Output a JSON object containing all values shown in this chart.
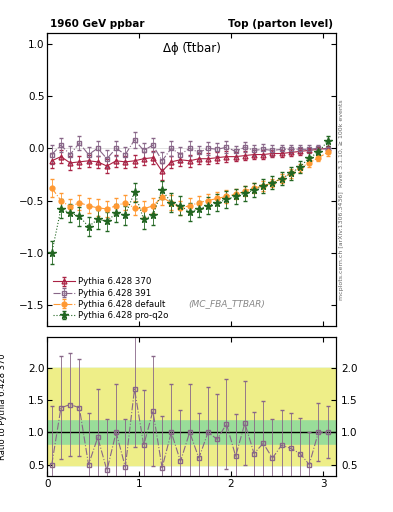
{
  "title_left": "1960 GeV ppbar",
  "title_right": "Top (parton level)",
  "plot_label": "Δϕ (t̅tbar)",
  "watermark": "(MC_FBA_TTBAR)",
  "right_label_top": "Rivet 3.1.10, ≥ 100k events",
  "right_label_bottom": "mcplots.cern.ch [arXiv:1306.3436]",
  "ylabel_ratio": "Ratio to Pythia 6.428 370",
  "xlim": [
    0.0,
    3.14159
  ],
  "ylim_main": [
    -1.7,
    1.1
  ],
  "ylim_ratio": [
    0.32,
    2.48
  ],
  "yticks_main": [
    -1.5,
    -1.0,
    -0.5,
    0.0,
    0.5,
    1.0
  ],
  "yticks_ratio": [
    0.5,
    1.0,
    1.5,
    2.0
  ],
  "xticks": [
    0,
    1,
    2,
    3
  ],
  "series": [
    {
      "label": "Pythia 6.428 370",
      "color": "#aa2244",
      "marker": "^",
      "linestyle": "-",
      "markersize": 3.5,
      "linewidth": 0.8,
      "fillstyle": "none",
      "x": [
        0.05,
        0.15,
        0.25,
        0.35,
        0.45,
        0.55,
        0.65,
        0.75,
        0.85,
        0.95,
        1.05,
        1.15,
        1.25,
        1.35,
        1.45,
        1.55,
        1.65,
        1.75,
        1.85,
        1.95,
        2.05,
        2.15,
        2.25,
        2.35,
        2.45,
        2.55,
        2.65,
        2.75,
        2.85,
        2.95,
        3.05
      ],
      "y": [
        -0.12,
        -0.08,
        -0.14,
        -0.13,
        -0.12,
        -0.13,
        -0.17,
        -0.12,
        -0.13,
        -0.12,
        -0.1,
        -0.09,
        -0.22,
        -0.13,
        -0.11,
        -0.12,
        -0.1,
        -0.1,
        -0.09,
        -0.08,
        -0.08,
        -0.07,
        -0.06,
        -0.06,
        -0.05,
        -0.05,
        -0.04,
        -0.03,
        -0.02,
        -0.01,
        0.0
      ],
      "yerr": [
        0.07,
        0.06,
        0.07,
        0.06,
        0.06,
        0.06,
        0.07,
        0.06,
        0.06,
        0.06,
        0.06,
        0.06,
        0.08,
        0.06,
        0.06,
        0.06,
        0.05,
        0.05,
        0.05,
        0.05,
        0.04,
        0.04,
        0.04,
        0.04,
        0.03,
        0.03,
        0.03,
        0.03,
        0.02,
        0.02,
        0.02
      ]
    },
    {
      "label": "Pythia 6.428 391",
      "color": "#886688",
      "marker": "s",
      "linestyle": "-.",
      "markersize": 3.5,
      "linewidth": 0.8,
      "fillstyle": "none",
      "x": [
        0.05,
        0.15,
        0.25,
        0.35,
        0.45,
        0.55,
        0.65,
        0.75,
        0.85,
        0.95,
        1.05,
        1.15,
        1.25,
        1.35,
        1.45,
        1.55,
        1.65,
        1.75,
        1.85,
        1.95,
        2.05,
        2.15,
        2.25,
        2.35,
        2.45,
        2.55,
        2.65,
        2.75,
        2.85,
        2.95,
        3.05
      ],
      "y": [
        -0.06,
        0.03,
        -0.06,
        0.05,
        -0.06,
        0.0,
        -0.1,
        0.0,
        -0.06,
        0.08,
        -0.02,
        0.03,
        -0.12,
        0.0,
        -0.06,
        0.0,
        -0.04,
        0.0,
        -0.01,
        0.01,
        -0.03,
        0.01,
        -0.02,
        -0.01,
        -0.02,
        -0.01,
        -0.01,
        -0.01,
        -0.01,
        0.0,
        -0.01
      ],
      "yerr": [
        0.09,
        0.07,
        0.08,
        0.07,
        0.07,
        0.07,
        0.08,
        0.07,
        0.07,
        0.08,
        0.07,
        0.07,
        0.08,
        0.07,
        0.07,
        0.07,
        0.06,
        0.06,
        0.06,
        0.06,
        0.05,
        0.05,
        0.05,
        0.05,
        0.05,
        0.04,
        0.04,
        0.04,
        0.04,
        0.03,
        0.03
      ]
    },
    {
      "label": "Pythia 6.428 default",
      "color": "#ff9933",
      "marker": "o",
      "linestyle": "-.",
      "markersize": 3.5,
      "linewidth": 0.8,
      "fillstyle": "full",
      "x": [
        0.05,
        0.15,
        0.25,
        0.35,
        0.45,
        0.55,
        0.65,
        0.75,
        0.85,
        0.95,
        1.05,
        1.15,
        1.25,
        1.35,
        1.45,
        1.55,
        1.65,
        1.75,
        1.85,
        1.95,
        2.05,
        2.15,
        2.25,
        2.35,
        2.45,
        2.55,
        2.65,
        2.75,
        2.85,
        2.95,
        3.05
      ],
      "y": [
        -0.38,
        -0.5,
        -0.56,
        -0.52,
        -0.55,
        -0.57,
        -0.58,
        -0.55,
        -0.52,
        -0.57,
        -0.58,
        -0.55,
        -0.47,
        -0.52,
        -0.57,
        -0.55,
        -0.52,
        -0.5,
        -0.48,
        -0.46,
        -0.44,
        -0.41,
        -0.38,
        -0.36,
        -0.33,
        -0.29,
        -0.24,
        -0.19,
        -0.14,
        -0.09,
        -0.04
      ],
      "yerr": [
        0.09,
        0.07,
        0.07,
        0.07,
        0.07,
        0.08,
        0.08,
        0.07,
        0.07,
        0.07,
        0.08,
        0.07,
        0.07,
        0.07,
        0.07,
        0.07,
        0.06,
        0.06,
        0.06,
        0.06,
        0.05,
        0.05,
        0.05,
        0.05,
        0.04,
        0.04,
        0.04,
        0.04,
        0.04,
        0.03,
        0.03
      ]
    },
    {
      "label": "Pythia 6.428 pro-q2o",
      "color": "#226622",
      "marker": "*",
      "linestyle": ":",
      "markersize": 5.5,
      "linewidth": 0.8,
      "fillstyle": "full",
      "x": [
        0.05,
        0.15,
        0.25,
        0.35,
        0.45,
        0.55,
        0.65,
        0.75,
        0.85,
        0.95,
        1.05,
        1.15,
        1.25,
        1.35,
        1.45,
        1.55,
        1.65,
        1.75,
        1.85,
        1.95,
        2.05,
        2.15,
        2.25,
        2.35,
        2.45,
        2.55,
        2.65,
        2.75,
        2.85,
        2.95,
        3.05
      ],
      "y": [
        -1.0,
        -0.58,
        -0.62,
        -0.65,
        -0.75,
        -0.68,
        -0.7,
        -0.62,
        -0.64,
        -0.42,
        -0.68,
        -0.64,
        -0.4,
        -0.52,
        -0.55,
        -0.61,
        -0.58,
        -0.55,
        -0.52,
        -0.49,
        -0.46,
        -0.43,
        -0.4,
        -0.36,
        -0.33,
        -0.29,
        -0.24,
        -0.18,
        -0.09,
        -0.04,
        0.07
      ],
      "yerr": [
        0.11,
        0.09,
        0.09,
        0.09,
        0.09,
        0.09,
        0.09,
        0.09,
        0.09,
        0.09,
        0.09,
        0.09,
        0.09,
        0.09,
        0.09,
        0.09,
        0.08,
        0.08,
        0.08,
        0.08,
        0.07,
        0.07,
        0.07,
        0.07,
        0.06,
        0.06,
        0.06,
        0.06,
        0.05,
        0.05,
        0.05
      ]
    }
  ],
  "ratio_391": {
    "x": [
      0.05,
      0.15,
      0.25,
      0.35,
      0.45,
      0.55,
      0.65,
      0.75,
      0.85,
      0.95,
      1.05,
      1.15,
      1.25,
      1.35,
      1.45,
      1.55,
      1.65,
      1.75,
      1.85,
      1.95,
      2.05,
      2.15,
      2.25,
      2.35,
      2.45,
      2.55,
      2.65,
      2.75,
      2.85,
      2.95,
      3.05
    ],
    "y": [
      0.5,
      1.38,
      1.43,
      1.38,
      0.5,
      0.92,
      0.41,
      1.0,
      0.46,
      1.67,
      0.8,
      1.33,
      0.45,
      1.0,
      0.55,
      1.0,
      0.6,
      1.0,
      0.89,
      1.13,
      0.63,
      1.14,
      0.67,
      0.83,
      0.6,
      0.8,
      0.75,
      0.67,
      0.5,
      1.0,
      1.0
    ],
    "yerr": [
      0.9,
      0.8,
      0.8,
      0.75,
      0.8,
      0.75,
      0.8,
      0.75,
      0.75,
      0.9,
      0.85,
      0.85,
      0.8,
      0.75,
      0.8,
      0.75,
      0.7,
      0.7,
      0.7,
      0.7,
      0.65,
      0.65,
      0.65,
      0.65,
      0.6,
      0.55,
      0.55,
      0.55,
      0.5,
      0.45,
      0.4
    ]
  },
  "band_green_lo": 0.5,
  "band_green_hi": 2.0,
  "band_yellow_lo1": 0.5,
  "band_yellow_hi1": 0.8,
  "band_yellow_lo2": 1.2,
  "band_yellow_hi2": 2.0,
  "band_green_color": "#99dd99",
  "band_yellow_color": "#eeee88",
  "background_color": "#ffffff"
}
